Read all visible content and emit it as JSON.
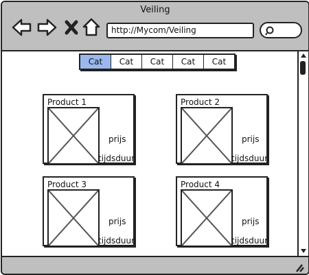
{
  "window": {
    "title": "Veiling"
  },
  "toolbar": {
    "back_icon": "arrow-left-icon",
    "forward_icon": "arrow-right-icon",
    "stop_icon": "close-icon",
    "home_icon": "home-icon",
    "url": "http://Mycom/Veiling",
    "search_icon": "search-icon"
  },
  "tabs": [
    {
      "label": "Cat",
      "active": true
    },
    {
      "label": "Cat",
      "active": false
    },
    {
      "label": "Cat",
      "active": false
    },
    {
      "label": "Cat",
      "active": false
    },
    {
      "label": "Cat",
      "active": false
    }
  ],
  "products": [
    {
      "name": "Product 1",
      "price": "prijs",
      "duration": "tijdsduur"
    },
    {
      "name": "Product 2",
      "price": "prijs",
      "duration": "tijdsduur"
    },
    {
      "name": "Product 3",
      "price": "prijs",
      "duration": "tijdsduur"
    },
    {
      "name": "Product 4",
      "price": "prijs",
      "duration": "tijdsduur"
    }
  ],
  "colors": {
    "chrome": "#bfbfbf",
    "active_tab": "#9ab8ee",
    "outline": "#222222"
  }
}
